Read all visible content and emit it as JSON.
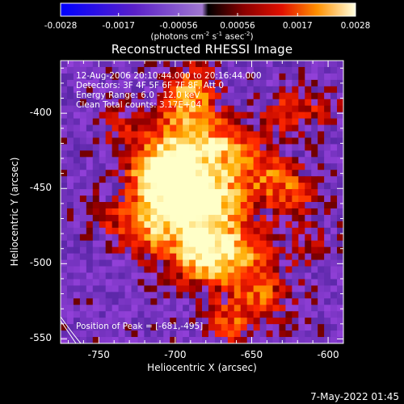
{
  "chart_data": {
    "type": "heatmap",
    "title": "Reconstructed RHESSI Image",
    "xlabel": "Heliocentric X (arcsec)",
    "ylabel": "Heliocentric Y (arcsec)",
    "xlim": [
      -775,
      -590
    ],
    "ylim": [
      -553,
      -365
    ],
    "x_ticks": [
      "-750",
      "-700",
      "-650",
      "-600"
    ],
    "y_ticks": [
      "-400",
      "-450",
      "-500",
      "-550"
    ],
    "colorbar": {
      "ticks": [
        "-0.0028",
        "-0.0017",
        "-0.00056",
        "0.00056",
        "0.0017",
        "0.0028"
      ],
      "range": [
        -0.0028,
        0.0028
      ],
      "units_parts": [
        "(photons cm",
        "-2",
        " s",
        "-1",
        " asec",
        "-2",
        ")"
      ]
    },
    "annotations": [
      "12-Aug-2006 20:10:44.000 to 20:16:44.000",
      "Detectors: 3F 4F 5F 6F 7F 8F, Att 0",
      "Energy Range: 6.0 - 12.0 keV",
      "Clean    Total counts: 3.17E+04"
    ],
    "peak_label": "Position of Peak = [-681,-495]",
    "peak_position": [
      -681,
      -495
    ]
  },
  "timestamp": "7-May-2022 01:45"
}
